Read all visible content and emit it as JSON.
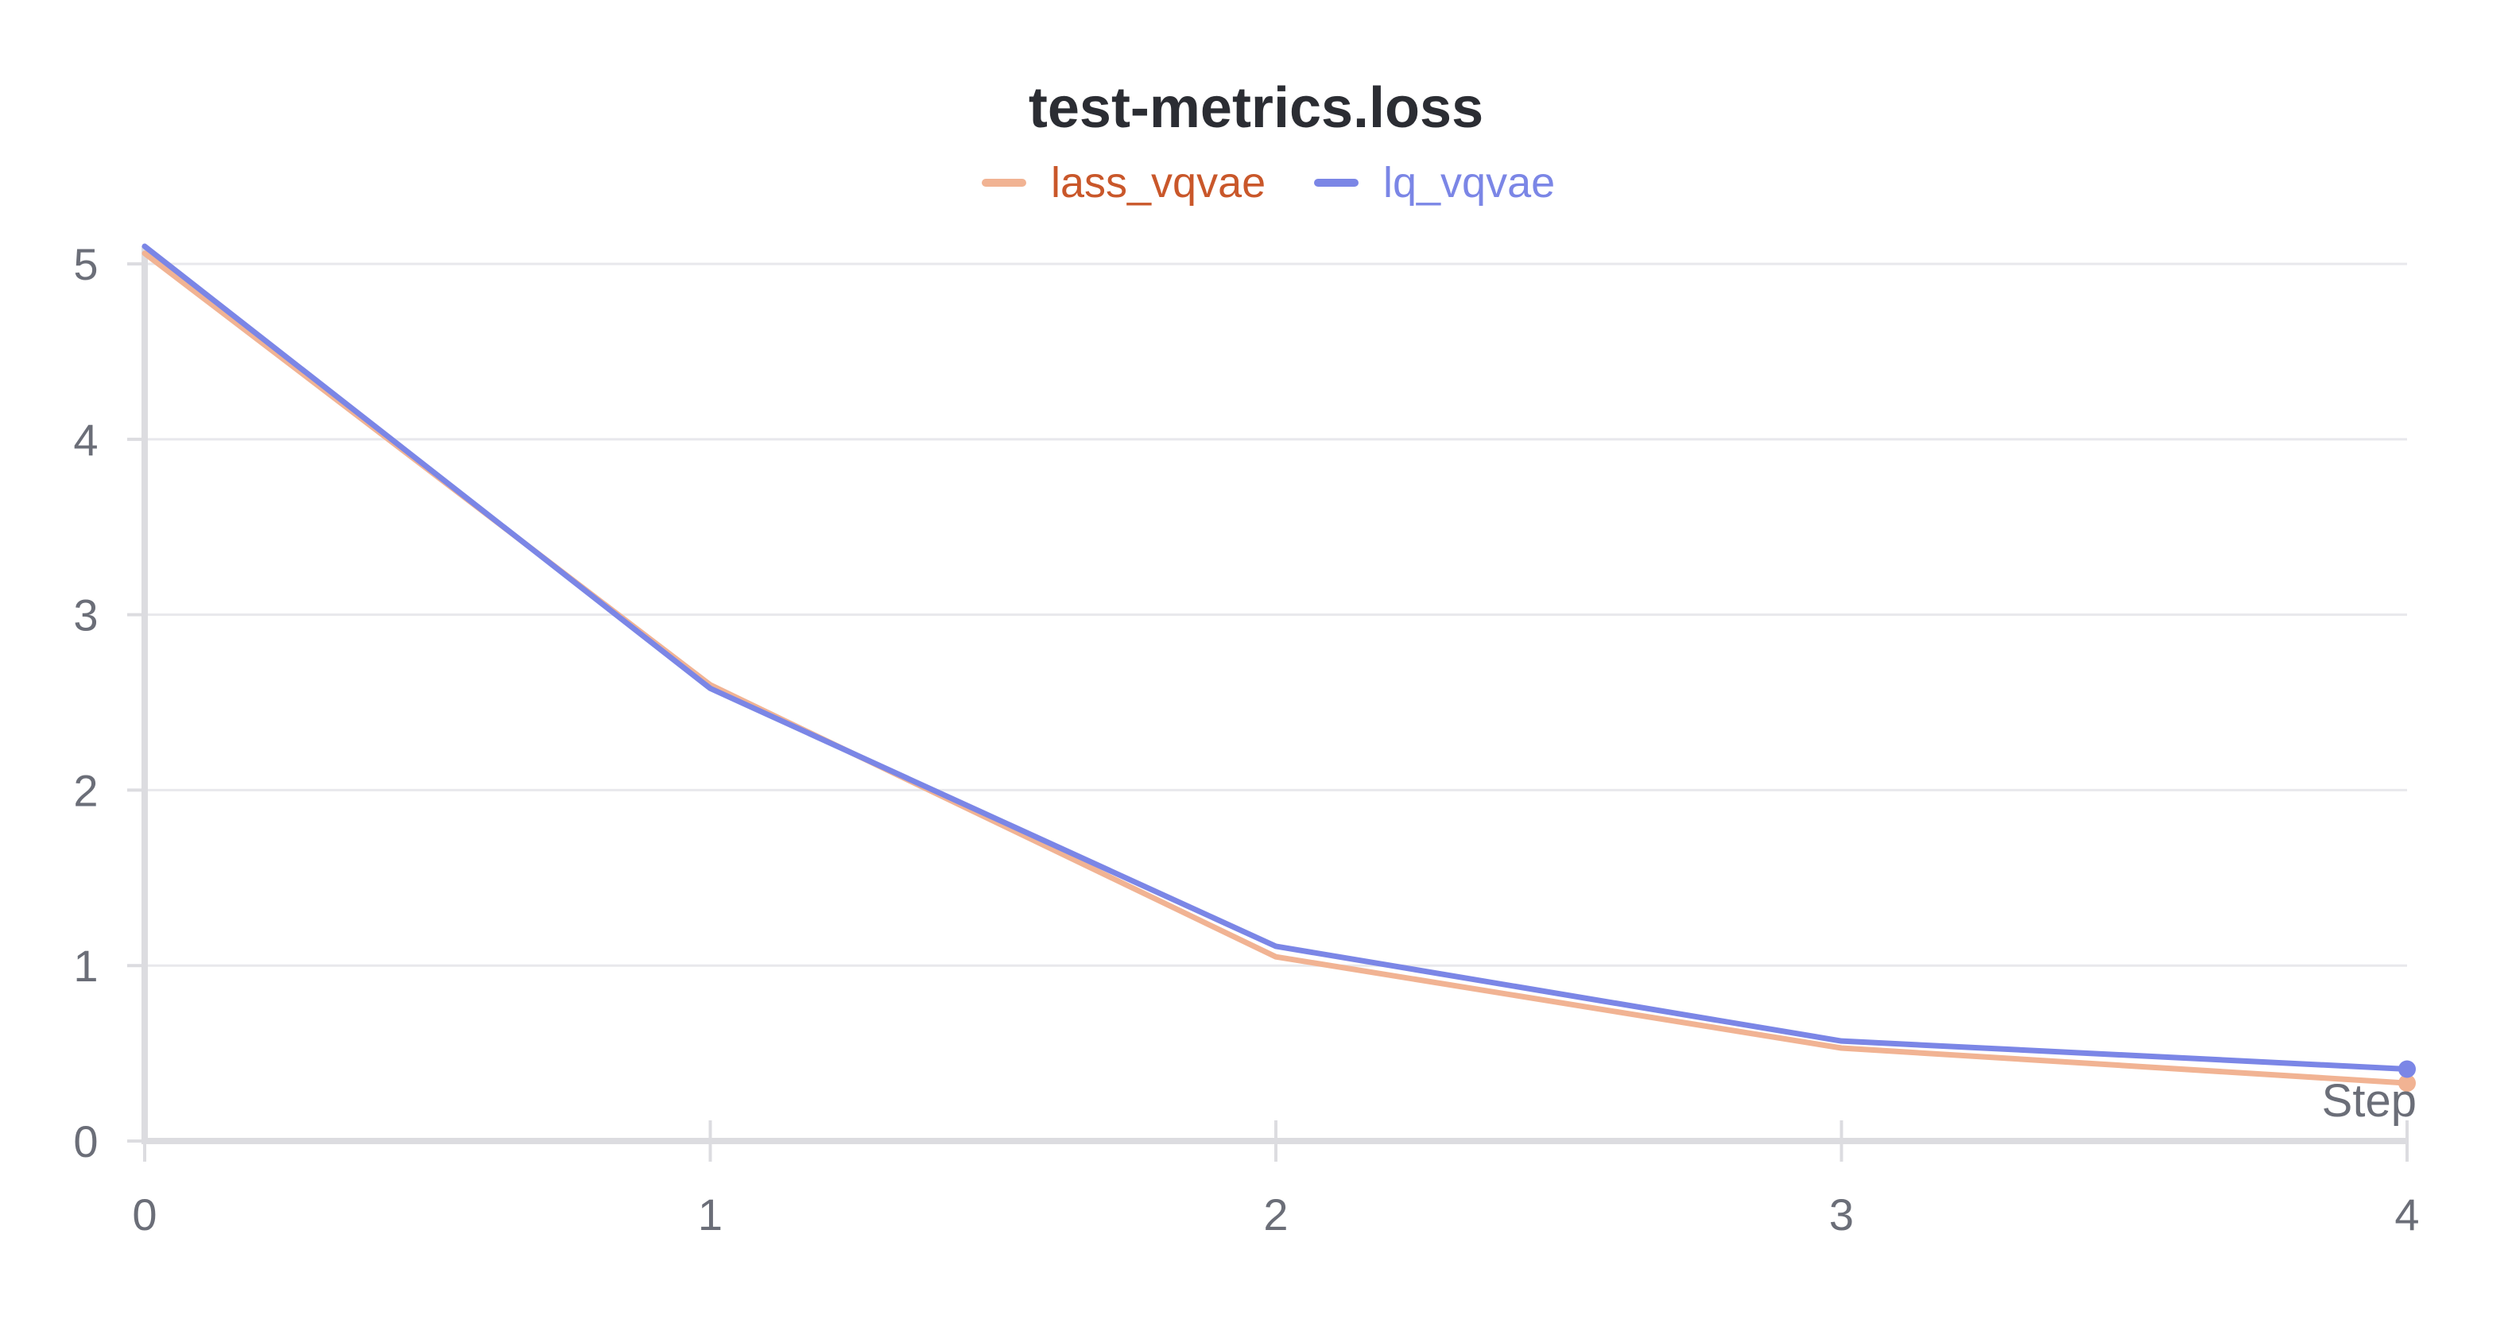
{
  "chart_data": {
    "type": "line",
    "title": "test-metrics.loss",
    "xlabel": "Step",
    "ylabel": "",
    "x": [
      0,
      1,
      2,
      3,
      4
    ],
    "xlim": [
      0,
      4
    ],
    "ylim": [
      0,
      5.1
    ],
    "x_ticks": [
      "0",
      "1",
      "2",
      "3",
      "4"
    ],
    "y_ticks": [
      "0",
      "1",
      "2",
      "3",
      "4",
      "5"
    ],
    "grid": true,
    "legend_position": "top-center",
    "series": [
      {
        "name": "lass_vqvae",
        "color": "#f1b393",
        "legend_text_color": "#c9572a",
        "values": [
          5.06,
          2.6,
          1.05,
          0.53,
          0.33
        ]
      },
      {
        "name": "lq_vqvae",
        "color": "#7b86e6",
        "legend_text_color": "#7b86e6",
        "values": [
          5.1,
          2.58,
          1.11,
          0.57,
          0.41
        ]
      }
    ]
  }
}
